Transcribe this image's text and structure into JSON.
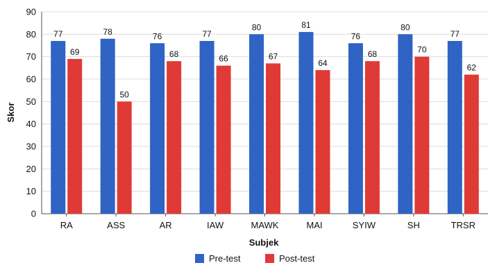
{
  "chart_data": {
    "type": "bar",
    "title": "",
    "xlabel": "Subjek",
    "ylabel": "Skor",
    "ylim": [
      0,
      90
    ],
    "yticks": [
      0,
      10,
      20,
      30,
      40,
      50,
      60,
      70,
      80,
      90
    ],
    "grid": true,
    "legend_position": "bottom",
    "categories": [
      "RA",
      "ASS",
      "AR",
      "IAW",
      "MAWK",
      "MAI",
      "SYIW",
      "SH",
      "TRSR"
    ],
    "series": [
      {
        "name": "Pre-test",
        "color": "#2f63c4",
        "values": [
          77,
          78,
          76,
          77,
          80,
          81,
          76,
          80,
          77
        ]
      },
      {
        "name": "Post-test",
        "color": "#e03a36",
        "values": [
          69,
          50,
          68,
          66,
          67,
          64,
          68,
          70,
          62
        ]
      }
    ]
  }
}
